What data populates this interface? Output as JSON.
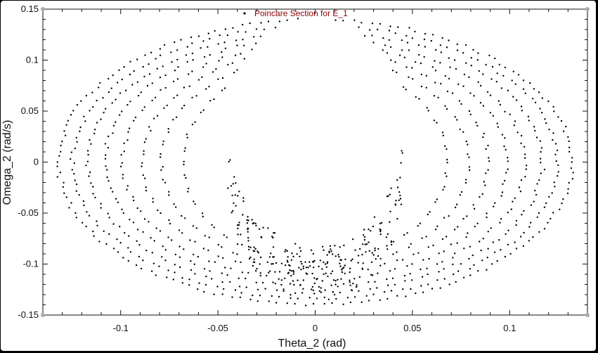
{
  "chart_data": {
    "type": "scatter",
    "title": "",
    "xlabel": "Theta_2 (rad)",
    "ylabel": "Omega_2 (rad/s)",
    "xlim": [
      -0.14,
      0.14
    ],
    "ylim": [
      -0.15,
      0.15
    ],
    "xticks": [
      -0.1,
      -0.05,
      0,
      0.05,
      0.1
    ],
    "xtick_labels": [
      "-0.1",
      "-0.05",
      "0",
      "0.05",
      "0.1"
    ],
    "yticks": [
      0.15,
      0.1,
      0.05,
      0,
      -0.05,
      -0.1,
      -0.15
    ],
    "ytick_labels": [
      "0.15",
      "0.1",
      "0.05",
      "0",
      "-0.05",
      "-0.1",
      "-0.15"
    ],
    "grid": false,
    "legend": {
      "position": "top-center",
      "entries": [
        "Poincare Section for E_1"
      ]
    },
    "series": [
      {
        "name": "Poincare Section for E_1",
        "marker": "dot",
        "color": "#000000",
        "description": "nested elliptical invariant curves centered near (0, 0)",
        "curves": [
          {
            "cx": 0,
            "cy": 0,
            "rx": 0.132,
            "ry": 0.14,
            "points": 86
          },
          {
            "cx": 0,
            "cy": 0,
            "rx": 0.125,
            "ry": 0.134,
            "points": 80
          },
          {
            "cx": 0,
            "cy": 0,
            "rx": 0.117,
            "ry": 0.128,
            "points": 76
          },
          {
            "cx": 0,
            "cy": 0,
            "rx": 0.108,
            "ry": 0.122,
            "points": 70
          },
          {
            "cx": 0,
            "cy": 0,
            "rx": 0.099,
            "ry": 0.116,
            "points": 64
          },
          {
            "cx": 0,
            "cy": 0,
            "rx": 0.089,
            "ry": 0.11,
            "points": 58
          },
          {
            "cx": 0,
            "cy": 0,
            "rx": 0.079,
            "ry": 0.104,
            "points": 52
          },
          {
            "cx": 0,
            "cy": 0,
            "rx": 0.068,
            "ry": 0.098,
            "points": 46
          }
        ],
        "inner_hole": {
          "cx": 0,
          "cy": 0.03,
          "rx": 0.045,
          "ry": 0.112
        }
      }
    ]
  },
  "colors": {
    "legend_text": "#8b0000",
    "marker": "#000000",
    "axis": "#111111",
    "frame_background": "#ffffff",
    "window_background": "#000000"
  }
}
